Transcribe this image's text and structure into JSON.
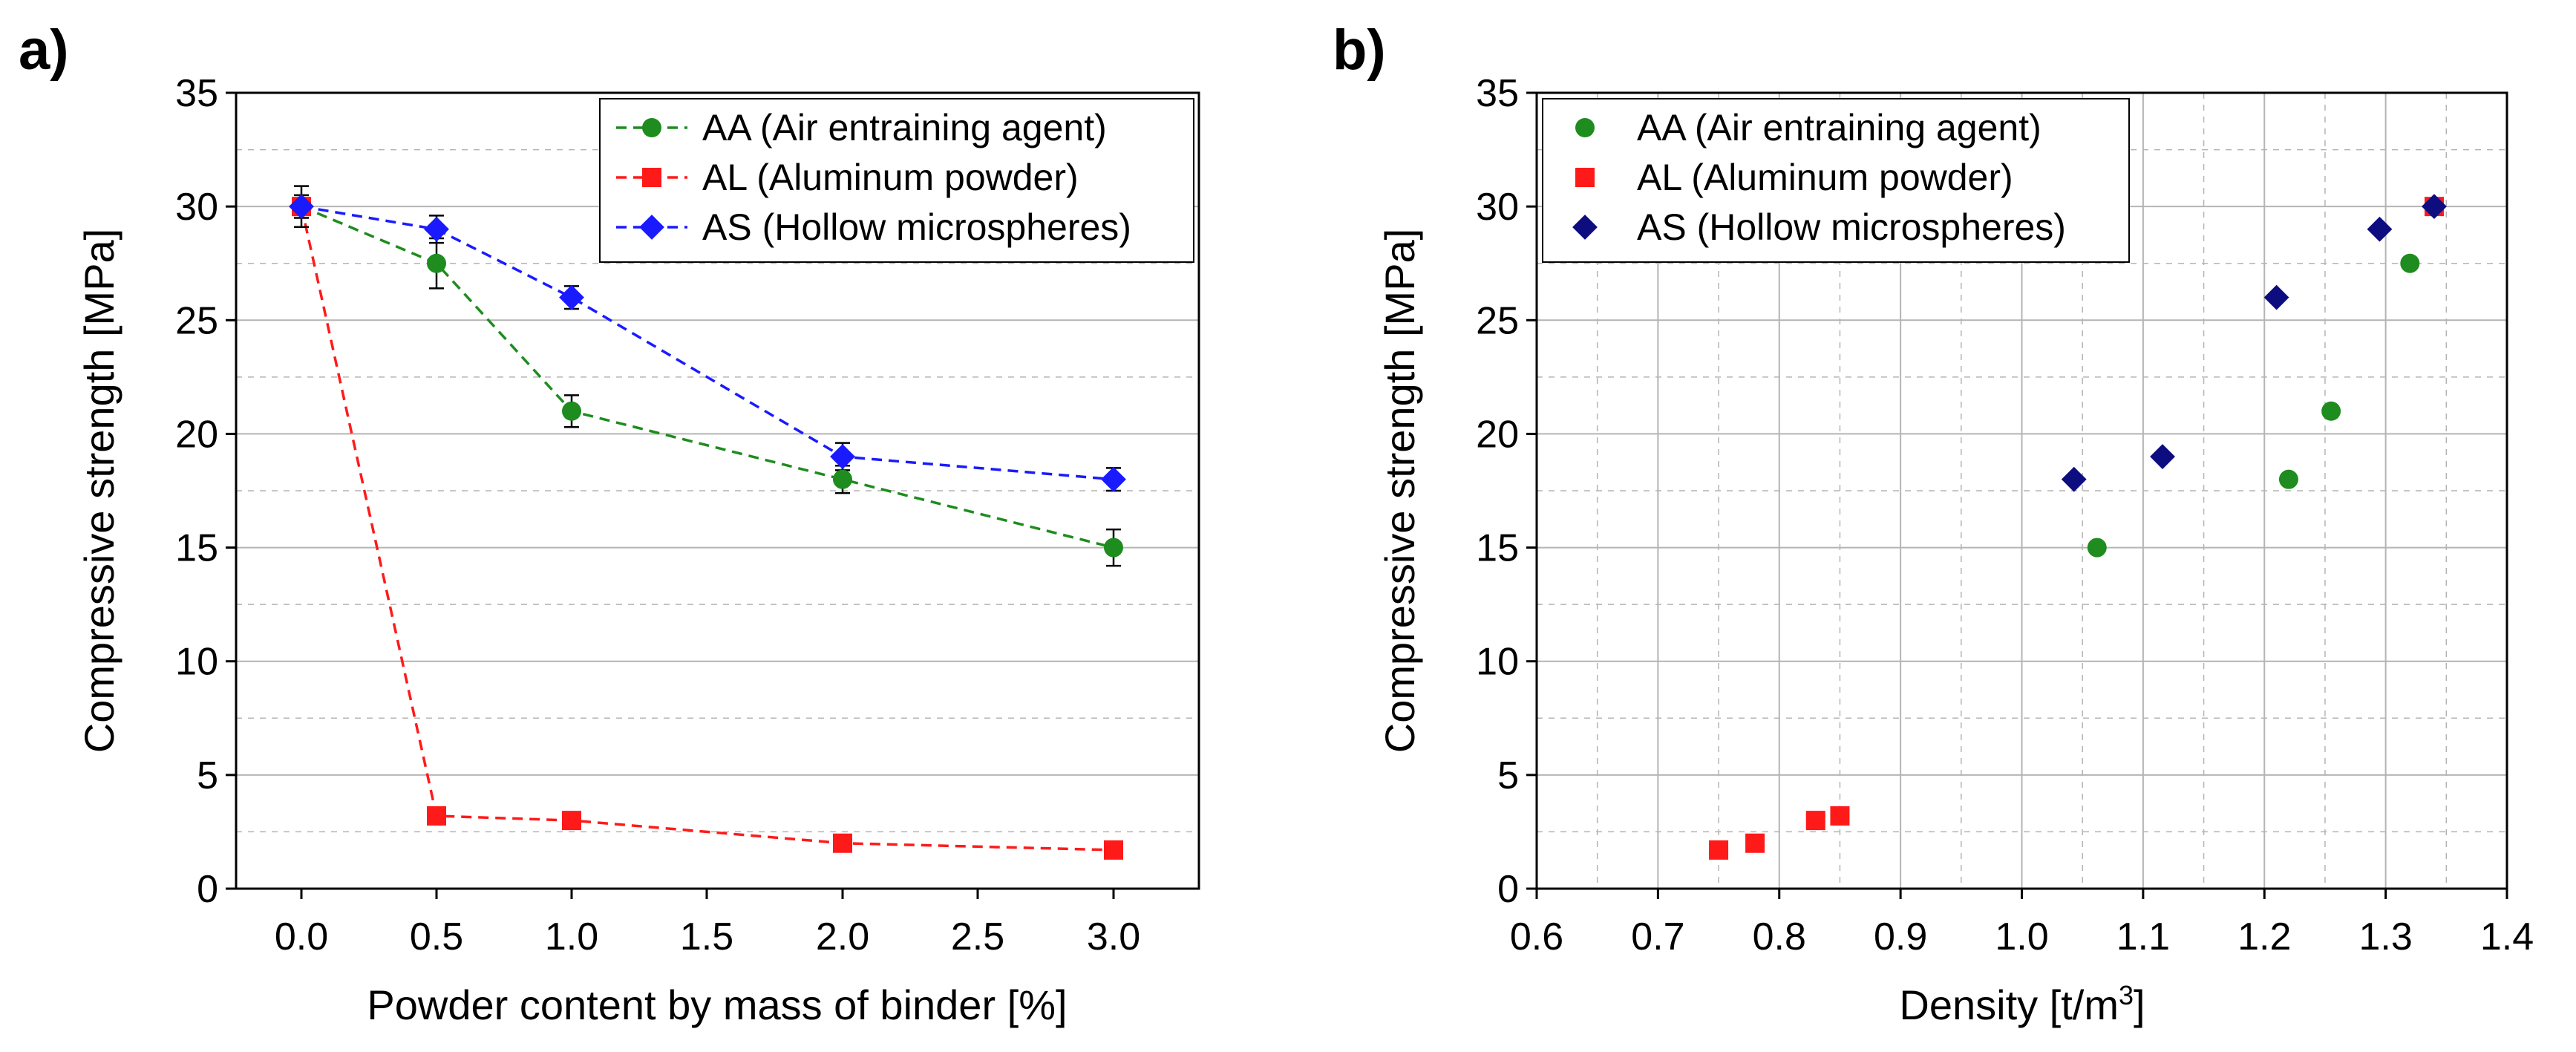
{
  "figure": {
    "panel_a_letter": "a)",
    "panel_b_letter": "b)"
  },
  "chart_data": [
    {
      "type": "line",
      "panel": "a)",
      "title": "",
      "xlabel": "Powder content by mass of binder [%]",
      "ylabel": "Compressive strength [MPa]",
      "x_tick_labels": [
        "0.0",
        "0.5",
        "1.0",
        "1.5",
        "2.0",
        "2.5",
        "3.0"
      ],
      "y_ticks": [
        0,
        5,
        10,
        15,
        20,
        25,
        30,
        35
      ],
      "ylim": [
        0,
        35
      ],
      "grid": "horizontal",
      "legend_position": "top-right",
      "line_style": "dashed",
      "series": [
        {
          "name": "AA (Air entraining agent)",
          "color": "#1e8c1e",
          "marker": "circle",
          "x": [
            0.0,
            0.5,
            1.0,
            2.0,
            3.0
          ],
          "values": [
            30,
            27.5,
            21,
            18,
            15
          ],
          "error": [
            0.9,
            1.1,
            0.7,
            0.6,
            0.8
          ]
        },
        {
          "name": "AL (Aluminum powder)",
          "color": "#ff1a1a",
          "marker": "square",
          "x": [
            0.0,
            0.5,
            1.0,
            2.0,
            3.0
          ],
          "values": [
            30,
            3.2,
            3,
            2,
            1.7
          ],
          "error": [
            0.3,
            0.2,
            0.2,
            0.2,
            0.2
          ]
        },
        {
          "name": "AS (Hollow microspheres)",
          "color": "#1a1aff",
          "marker": "diamond",
          "x": [
            0.0,
            0.5,
            1.0,
            2.0,
            3.0
          ],
          "values": [
            30,
            29,
            26,
            19,
            18
          ],
          "error": [
            0.5,
            0.6,
            0.5,
            0.6,
            0.5
          ]
        }
      ]
    },
    {
      "type": "scatter",
      "panel": "b)",
      "title": "",
      "xlabel": "Density [t/m",
      "xlabel_sup": "3",
      "xlabel_end": "]",
      "ylabel": "Compressive strength [MPa]",
      "x_ticks": [
        0.6,
        0.7,
        0.8,
        0.9,
        1.0,
        1.1,
        1.2,
        1.3,
        1.4
      ],
      "y_ticks": [
        0,
        5,
        10,
        15,
        20,
        25,
        30,
        35
      ],
      "xlim": [
        0.6,
        1.4
      ],
      "ylim": [
        0,
        35
      ],
      "grid": "both",
      "legend_position": "top-left",
      "series": [
        {
          "name": "AA (Air entraining agent)",
          "color": "#1e8c1e",
          "marker": "circle",
          "x": [
            1.34,
            1.32,
            1.255,
            1.22,
            1.062
          ],
          "values": [
            30,
            27.5,
            21,
            18,
            15
          ]
        },
        {
          "name": "AL (Aluminum powder)",
          "color": "#ff1a1a",
          "marker": "square",
          "x": [
            1.34,
            0.85,
            0.83,
            0.78,
            0.75
          ],
          "values": [
            30,
            3.2,
            3,
            2,
            1.7
          ]
        },
        {
          "name": "AS (Hollow microspheres)",
          "color": "#0d0d80",
          "marker": "diamond",
          "x": [
            1.34,
            1.295,
            1.21,
            1.116,
            1.043
          ],
          "values": [
            30,
            29,
            26,
            19,
            18
          ]
        }
      ]
    }
  ]
}
